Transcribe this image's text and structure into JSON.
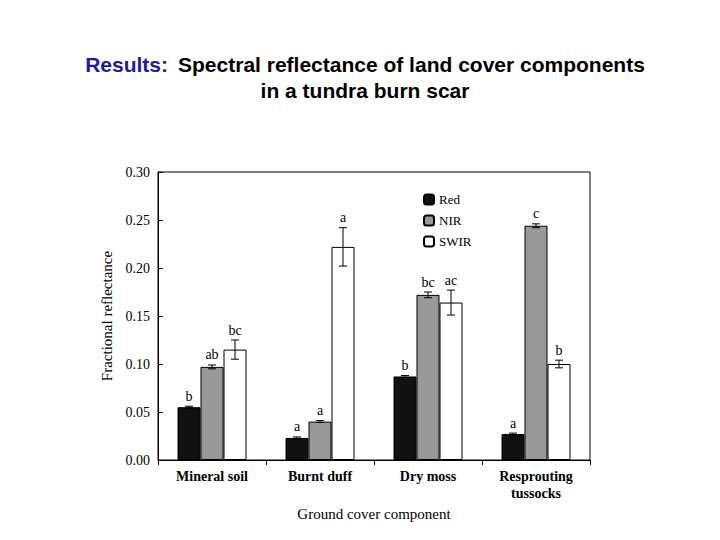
{
  "chart_data": {
    "type": "bar",
    "title": "Results:",
    "subtitle": "Spectral reflectance of land cover components\nin a tundra burn scar",
    "x_label": "Ground cover component",
    "y_label": "Fractional reflectance",
    "categories": [
      "Mineral soil",
      "Burnt duff",
      "Dry moss",
      "Resprouting\ntussocks"
    ],
    "series": [
      {
        "name": "Red",
        "color": "#111111",
        "values": [
          0.055,
          0.023,
          0.087,
          0.027
        ],
        "errors": [
          0.001,
          0.001,
          0.001,
          0.001
        ],
        "letters": [
          "b",
          "a",
          "b",
          "a"
        ]
      },
      {
        "name": "NIR",
        "color": "#999999",
        "values": [
          0.097,
          0.04,
          0.172,
          0.244
        ],
        "errors": [
          0.002,
          0.001,
          0.003,
          0.002
        ],
        "letters": [
          "ab",
          "a",
          "bc",
          "c"
        ]
      },
      {
        "name": "SWIR",
        "color": "#ffffff",
        "values": [
          0.115,
          0.222,
          0.164,
          0.1
        ],
        "errors": [
          0.01,
          0.02,
          0.013,
          0.004
        ],
        "letters": [
          "bc",
          "a",
          "ac",
          "b"
        ]
      }
    ],
    "ylim": [
      0,
      0.3
    ],
    "yticks": [
      {
        "value": 0,
        "label": "0.00"
      },
      {
        "value": 0.05,
        "label": "0.05"
      },
      {
        "value": 0.1,
        "label": "0.10"
      },
      {
        "value": 0.15,
        "label": "0.15"
      },
      {
        "value": 0.2,
        "label": "0.20"
      },
      {
        "value": 0.25,
        "label": "0.25"
      },
      {
        "value": 0.3,
        "label": "0.30"
      }
    ],
    "grid": false,
    "legend": "upper-left"
  }
}
